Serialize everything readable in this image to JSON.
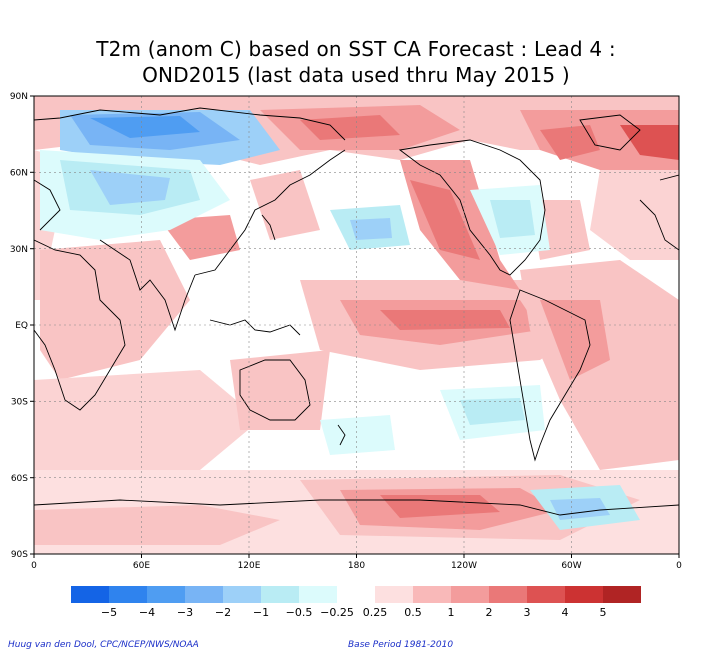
{
  "title": {
    "line1": "T2m (anom C) based on SST CA Forecast : Lead 4 :",
    "line2": "OND2015 (last data used thru May 2015 )"
  },
  "map": {
    "lat_labels": [
      "90N",
      "60N",
      "30N",
      "EQ",
      "30S",
      "60S",
      "90S"
    ],
    "lon_labels": [
      "0",
      "60E",
      "120E",
      "180",
      "120W",
      "60W",
      "0"
    ]
  },
  "colorbar": {
    "labels": [
      "−5",
      "−4",
      "−3",
      "−2",
      "−1",
      "−0.5",
      "−0.25",
      "0.25",
      "0.5",
      "1",
      "2",
      "3",
      "4",
      "5"
    ],
    "colors": [
      "#1464e6",
      "#2f83ee",
      "#4f9df2",
      "#78b4f5",
      "#9dd0f8",
      "#b9ecf4",
      "#dcfbfc",
      "#ffffff",
      "#fde0e0",
      "#f9b9b9",
      "#f39c9c",
      "#ea7878",
      "#dd5252",
      "#cc3232",
      "#b02424"
    ]
  },
  "credits": {
    "left": "Huug van den Dool, CPC/NCEP/NWS/NOAA",
    "right": "Base Period 1981-2010"
  }
}
